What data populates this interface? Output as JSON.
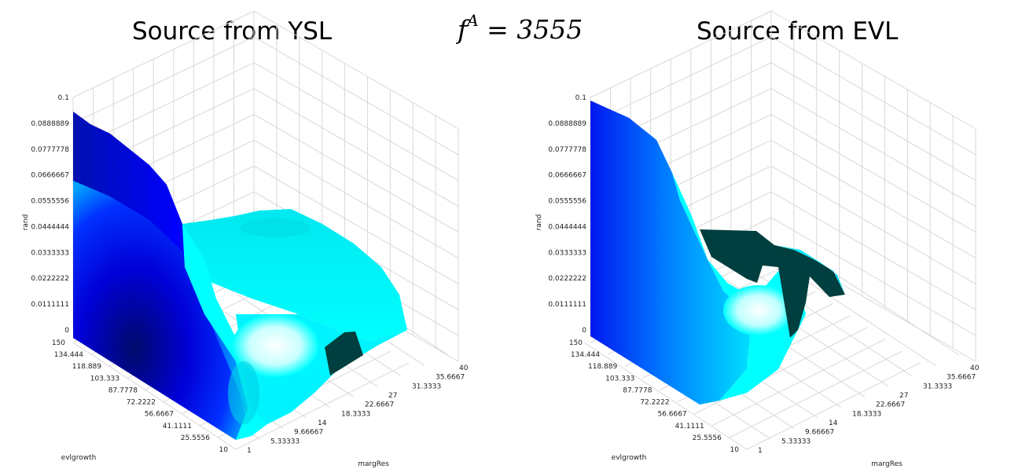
{
  "titles": {
    "left": "Source from YSL",
    "right": "Source from EVL",
    "formula_symbol": "f",
    "formula_sup": "A",
    "formula_value": "= 3555"
  },
  "chart_data": [
    {
      "type": "surface3d",
      "title": "Source from YSL",
      "zlabel": "rand",
      "xlabel": "evlgrowth",
      "ylabel": "margRes",
      "z_ticks": [
        "0",
        "0.0111111",
        "0.0222222",
        "0.0333333",
        "0.0444444",
        "0.0555556",
        "0.0666667",
        "0.0777778",
        "0.0888889",
        "0.1"
      ],
      "evlgrowth_ticks": [
        "150",
        "134.444",
        "118.889",
        "103.333",
        "87.7778",
        "72.2222",
        "56.6667",
        "41.1111",
        "25.5556",
        "10"
      ],
      "margres_ticks": [
        "1",
        "5.33333",
        "9.66667",
        "14",
        "18.3333",
        "22.6667",
        "27",
        "31.3333",
        "35.6667",
        "40"
      ],
      "zlim": [
        0,
        0.1
      ],
      "evlgrowth_range": [
        10,
        150
      ],
      "margres_range": [
        1,
        40
      ],
      "grid": true,
      "colormap": [
        "#000a4a",
        "#0000e0",
        "#00c8ff",
        "#00ffff",
        "#ffffff",
        "#004040"
      ]
    },
    {
      "type": "surface3d",
      "title": "Source from EVL",
      "zlabel": "rand",
      "xlabel": "evlgrowth",
      "ylabel": "margRes",
      "z_ticks": [
        "0",
        "0.0111111",
        "0.0222222",
        "0.0333333",
        "0.0444444",
        "0.0555556",
        "0.0666667",
        "0.0777778",
        "0.0888889",
        "0.1"
      ],
      "evlgrowth_ticks": [
        "150",
        "134.444",
        "118.889",
        "103.333",
        "87.7778",
        "72.2222",
        "56.6667",
        "41.1111",
        "25.5556",
        "10"
      ],
      "margres_ticks": [
        "1",
        "5.33333",
        "9.66667",
        "14",
        "18.3333",
        "22.6667",
        "27",
        "31.3333",
        "35.6667",
        "40"
      ],
      "zlim": [
        0,
        0.1
      ],
      "evlgrowth_range": [
        10,
        150
      ],
      "margres_range": [
        1,
        40
      ],
      "grid": true,
      "colormap": [
        "#0000e0",
        "#00c8ff",
        "#00ffff",
        "#ffffff",
        "#004040"
      ]
    }
  ]
}
